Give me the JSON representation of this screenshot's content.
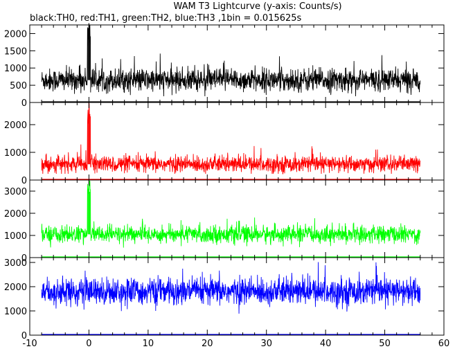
{
  "chart_data": {
    "type": "line",
    "title": "WAM T3 Lightcurve (y-axis: Counts/s)",
    "subtitle": "black:TH0, red:TH1, green:TH2, blue:TH3 ,1bin = 0.015625s",
    "x_range": [
      -10,
      60
    ],
    "x_ticks": [
      -10,
      0,
      10,
      20,
      30,
      40,
      50,
      60
    ],
    "data_x_range": [
      -8,
      56
    ],
    "bin_size_s": 0.015625,
    "panels": [
      {
        "series": "TH0",
        "color": "#000000",
        "ylim": [
          0,
          2250
        ],
        "y_ticks": [
          0,
          500,
          1000,
          1500,
          2000
        ],
        "baseline": 650,
        "spread": 300,
        "peak": {
          "x": 0.0,
          "value": 2300
        }
      },
      {
        "series": "TH1",
        "color": "#ff0000",
        "ylim": [
          0,
          2800
        ],
        "y_ticks": [
          0,
          1000,
          2000
        ],
        "baseline": 570,
        "spread": 270,
        "peak": {
          "x": 0.0,
          "value": 2800
        }
      },
      {
        "series": "TH2",
        "color": "#00ff00",
        "ylim": [
          0,
          3500
        ],
        "y_ticks": [
          0,
          1000,
          2000,
          3000
        ],
        "baseline": 1050,
        "spread": 350,
        "peak": {
          "x": 0.0,
          "value": 3500
        }
      },
      {
        "series": "TH3",
        "color": "#0000ff",
        "ylim": [
          0,
          3200
        ],
        "y_ticks": [
          0,
          1000,
          2000,
          3000
        ],
        "baseline": 1800,
        "spread": 500,
        "peak": null
      }
    ]
  }
}
